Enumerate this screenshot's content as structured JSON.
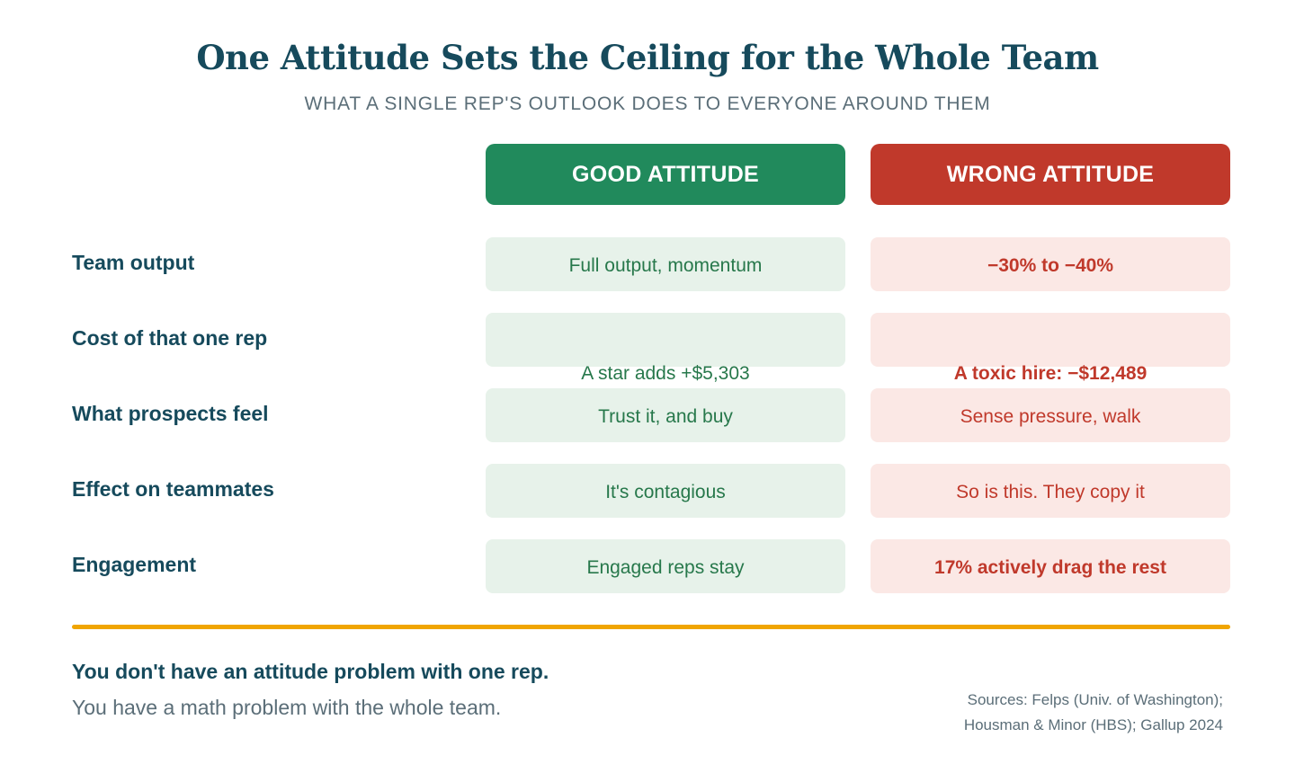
{
  "title": "One Attitude Sets the Ceiling for the Whole Team",
  "subtitle": "WHAT A SINGLE REP'S OUTLOOK DOES TO EVERYONE AROUND THEM",
  "columns": {
    "good": "GOOD ATTITUDE",
    "wrong": "WRONG ATTITUDE"
  },
  "colors": {
    "good": "#218a5c",
    "wrong": "#c0392b",
    "accent": "#f0a500",
    "heading": "#164a5c"
  },
  "rows": [
    {
      "label": "Team output",
      "good": "Full output, momentum",
      "wrong": "−30% to −40%"
    },
    {
      "label": "Cost of that one rep",
      "good": "A star adds +$5,303",
      "wrong": "A toxic hire: −$12,489"
    },
    {
      "label": "What prospects feel",
      "good": "Trust it, and buy",
      "wrong": "Sense pressure, walk"
    },
    {
      "label": "Effect on teammates",
      "good": "It's contagious",
      "wrong": "So is this. They copy it"
    },
    {
      "label": "Engagement",
      "good": "Engaged reps stay",
      "wrong": "17% actively drag the rest"
    }
  ],
  "footer": {
    "strong": "You don't have an attitude problem with one rep.",
    "normal": "You have a math problem with the whole team.",
    "sources_line1": "Sources: Felps (Univ. of Washington);",
    "sources_line2": "Housman & Minor (HBS); Gallup 2024"
  }
}
